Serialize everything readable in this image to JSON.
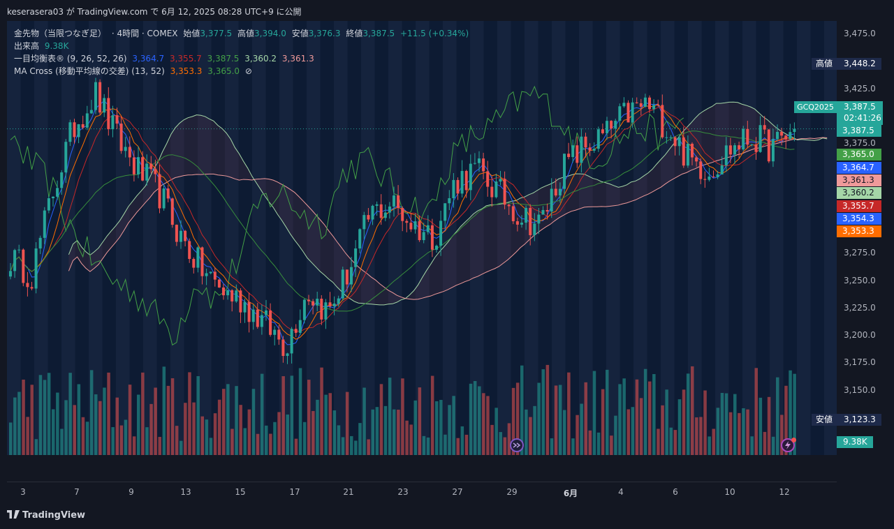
{
  "header": {
    "text": "keserasera03 が TradingView.com で 6月 12, 2025 08:28 UTC+9 に公開"
  },
  "legend": {
    "symbol_line": {
      "name": "金先物（当限つなぎ足）",
      "interval": "· 4時間 · COMEX",
      "open_label": "始値",
      "open": "3,377.5",
      "high_label": "高値",
      "high": "3,394.0",
      "low_label": "安値",
      "low": "3,376.3",
      "close_label": "終値",
      "close": "3,387.5",
      "change": "+11.5 (+0.34%)"
    },
    "volume_line": {
      "label": "出来高",
      "value": "9.38K"
    },
    "ichimoku_line": {
      "label": "一目均衡表® (9, 26, 52, 26)",
      "v1": "3,364.7",
      "v2": "3,355.7",
      "v3": "3,387.5",
      "v4": "3,360.2",
      "v5": "3,361.3"
    },
    "ma_line": {
      "label": "MA Cross (移動平均線の交差) (13, 52)",
      "v1": "3,353.3",
      "v2": "3,365.0",
      "icon": "⊘"
    }
  },
  "price_axis": {
    "ticks": [
      "3,475.0",
      "3,425.0",
      "3,375.0",
      "3,275.0",
      "3,250.0",
      "3,225.0",
      "3,200.0",
      "3,175.0",
      "3,150.0"
    ],
    "high_tag": {
      "label": "高値",
      "value": "3,448.2"
    },
    "low_tag": {
      "label": "安値",
      "value": "3,123.3"
    },
    "symbol_tag": {
      "symbol": "GCQ2025",
      "price": "3,387.5",
      "countdown": "02:41:26"
    },
    "tags": [
      {
        "value": "3,387.5",
        "color": "#26a69a"
      },
      {
        "value": "3,365.0",
        "color": "#43a047"
      },
      {
        "value": "3,364.7",
        "color": "#2962ff"
      },
      {
        "value": "3,361.3",
        "color": "#ef9a9a"
      },
      {
        "value": "3,360.2",
        "color": "#a5d6a7"
      },
      {
        "value": "3,355.7",
        "color": "#c62828"
      },
      {
        "value": "3,354.3",
        "color": "#2962ff"
      },
      {
        "value": "3,353.3",
        "color": "#ff6d00"
      }
    ]
  },
  "time_axis": {
    "ticks": [
      "3",
      "7",
      "9",
      "13",
      "15",
      "17",
      "21",
      "23",
      "27",
      "29",
      "6月",
      "4",
      "6",
      "10",
      "12"
    ]
  },
  "volume_badge": "9.38K",
  "footer": {
    "brand": "TradingView"
  },
  "colors": {
    "up": "#26a69a",
    "down": "#ef5350",
    "background": "#131722",
    "plot": "#0d1b33"
  },
  "chart_data": {
    "type": "candlestick",
    "symbol": "GCQ2025",
    "interval": "4時間",
    "ylim": [
      3120,
      3490
    ],
    "x": [
      "3",
      "7",
      "9",
      "13",
      "15",
      "17",
      "21",
      "23",
      "27",
      "29",
      "6月",
      "4",
      "6",
      "10",
      "12"
    ],
    "close_path": [
      3270,
      3255,
      3330,
      3390,
      3420,
      3380,
      3350,
      3330,
      3290,
      3260,
      3240,
      3230,
      3210,
      3190,
      3240,
      3220,
      3260,
      3310,
      3320,
      3300,
      3290,
      3340,
      3350,
      3330,
      3310,
      3300,
      3350,
      3370,
      3380,
      3400,
      3410,
      3390,
      3360,
      3350,
      3370,
      3380,
      3370,
      3387.5
    ],
    "indicators": {
      "ichimoku": {
        "conversion": 3364.7,
        "base": 3355.7,
        "lagging": 3387.5,
        "span_a": 3360.2,
        "span_b": 3361.3
      },
      "ma_cross": {
        "ma13": 3353.3,
        "ma52": 3365.0
      }
    },
    "last": {
      "open": 3377.5,
      "high": 3394.0,
      "low": 3376.3,
      "close": 3387.5,
      "volume": "9.38K"
    }
  }
}
